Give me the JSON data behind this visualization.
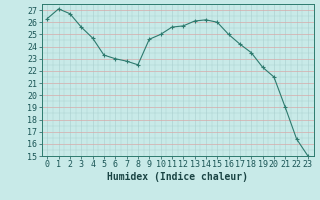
{
  "x": [
    0,
    1,
    2,
    3,
    4,
    5,
    6,
    7,
    8,
    9,
    10,
    11,
    12,
    13,
    14,
    15,
    16,
    17,
    18,
    19,
    20,
    21,
    22,
    23
  ],
  "y": [
    26.3,
    27.1,
    26.7,
    25.6,
    24.7,
    23.3,
    23.0,
    22.8,
    22.5,
    24.6,
    25.0,
    25.6,
    25.7,
    26.1,
    26.2,
    26.0,
    25.0,
    24.2,
    23.5,
    22.3,
    21.5,
    19.0,
    16.4,
    15.0
  ],
  "ylim": [
    15,
    27.5
  ],
  "yticks": [
    15,
    16,
    17,
    18,
    19,
    20,
    21,
    22,
    23,
    24,
    25,
    26,
    27
  ],
  "xlim": [
    -0.5,
    23.5
  ],
  "xticks": [
    0,
    1,
    2,
    3,
    4,
    5,
    6,
    7,
    8,
    9,
    10,
    11,
    12,
    13,
    14,
    15,
    16,
    17,
    18,
    19,
    20,
    21,
    22,
    23
  ],
  "xlabel": "Humidex (Indice chaleur)",
  "line_color": "#2d7a6e",
  "marker": "+",
  "marker_size": 3,
  "marker_linewidth": 0.8,
  "bg_color": "#c8eae8",
  "grid_minor_color": "#a8cece",
  "grid_major_color": "#d8a8a8",
  "xlabel_fontsize": 7,
  "tick_fontsize": 6,
  "line_width": 0.8
}
